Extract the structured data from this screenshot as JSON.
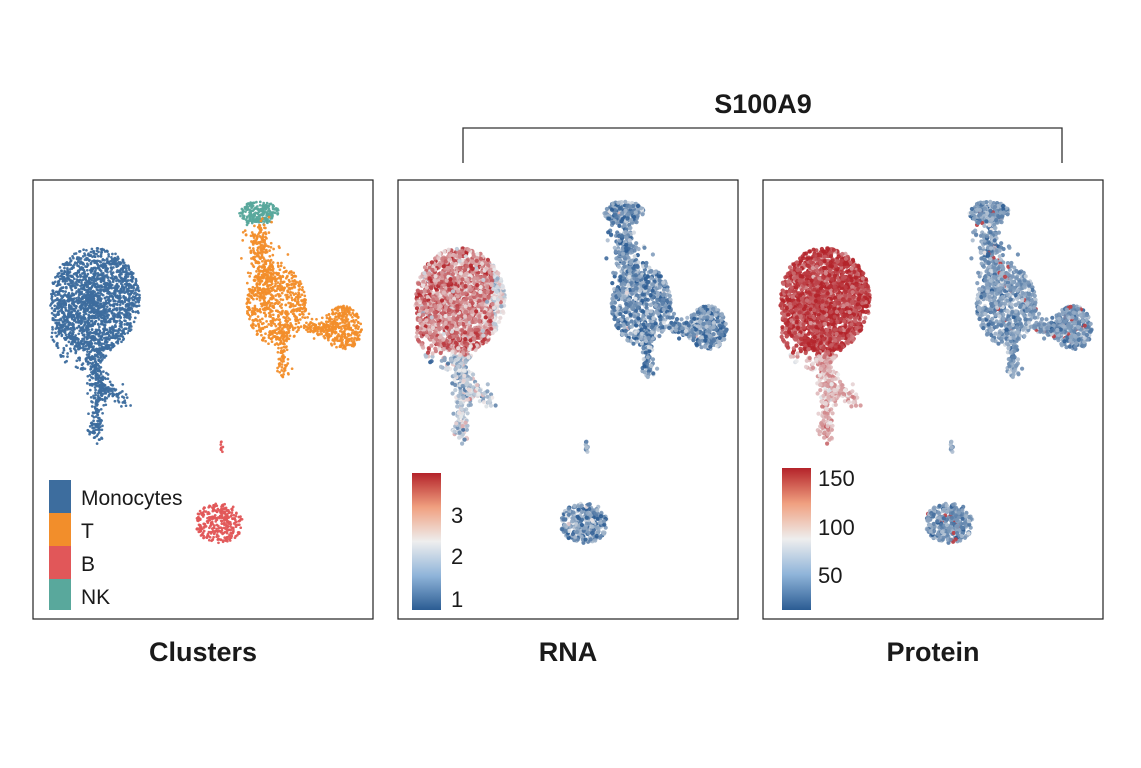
{
  "figure_title": "S100A9",
  "colors": {
    "Monocytes": "#3d6d9e",
    "T": "#f28e2b",
    "B": "#e15759",
    "NK": "#59a89c",
    "low": "#2b5c93",
    "mid": "#eeeeee",
    "high": "#b4232a"
  },
  "chart_data": [
    {
      "type": "scatter",
      "panel_title": "Clusters",
      "color_by": "categorical",
      "legend": [
        "Monocytes",
        "T",
        "B",
        "NK"
      ],
      "groups": [
        {
          "name": "Monocytes",
          "approx_points": 2600
        },
        {
          "name": "T",
          "approx_points": 1500
        },
        {
          "name": "B",
          "approx_points": 300
        },
        {
          "name": "NK",
          "approx_points": 200
        }
      ]
    },
    {
      "type": "scatter",
      "panel_title": "RNA",
      "feature": "S100A9",
      "color_by": "continuous",
      "colorbar": {
        "ticks": [
          1,
          2,
          3
        ],
        "range": [
          0.6,
          3.8
        ]
      },
      "group_levels": {
        "Monocytes": 3.0,
        "T": 1.2,
        "B": 1.3,
        "NK": 1.2
      }
    },
    {
      "type": "scatter",
      "panel_title": "Protein",
      "feature": "S100A9",
      "color_by": "continuous",
      "colorbar": {
        "ticks": [
          50,
          100,
          150
        ],
        "range": [
          10,
          160
        ]
      },
      "group_levels": {
        "Monocytes": 148,
        "T": 42,
        "B": 40,
        "NK": 42
      }
    }
  ]
}
